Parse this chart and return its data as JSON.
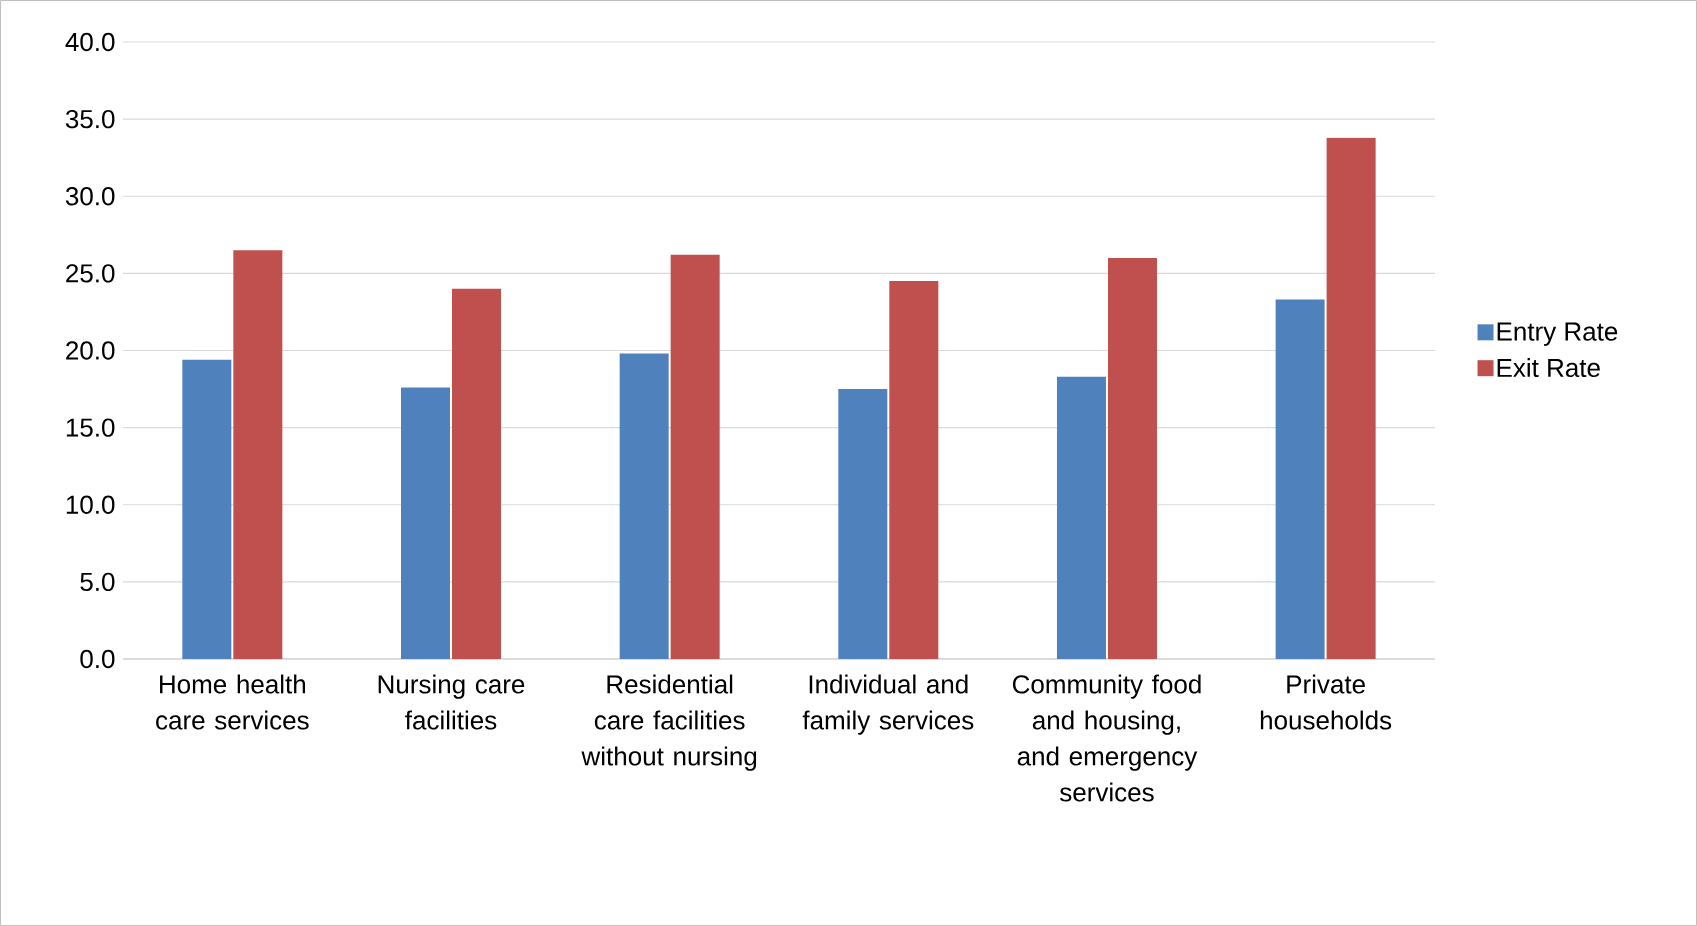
{
  "chart_data": {
    "type": "bar",
    "categories": [
      "Home health care services",
      "Nursing care facilities",
      "Residential care facilities without nursing",
      "Individual and family services",
      "Community food and housing, and emergency services",
      "Private households"
    ],
    "series": [
      {
        "name": "Entry Rate",
        "color": "#4f81bd",
        "values": [
          19.4,
          17.6,
          19.8,
          17.5,
          18.3,
          23.3
        ]
      },
      {
        "name": "Exit Rate",
        "color": "#c0504d",
        "values": [
          26.5,
          24.0,
          26.2,
          24.5,
          26.0,
          33.8
        ]
      }
    ],
    "ylim": [
      0,
      40
    ],
    "yticks": [
      {
        "value": 0,
        "label": "0.0"
      },
      {
        "value": 5,
        "label": "5.0"
      },
      {
        "value": 10,
        "label": "10.0"
      },
      {
        "value": 15,
        "label": "15.0"
      },
      {
        "value": 20,
        "label": "20.0"
      },
      {
        "value": 25,
        "label": "25.0"
      },
      {
        "value": 30,
        "label": "30.0"
      },
      {
        "value": 35,
        "label": "35.0"
      },
      {
        "value": 40,
        "label": "40.0"
      }
    ],
    "grid": "y",
    "legend": "right"
  }
}
